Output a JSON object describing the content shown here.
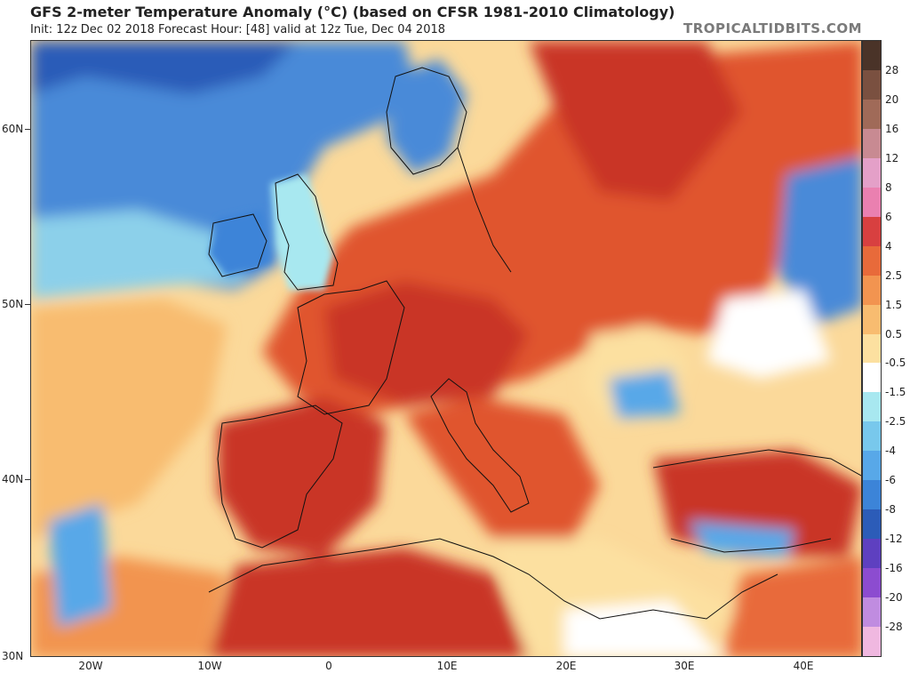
{
  "header": {
    "title": "GFS 2-meter Temperature Anomaly (°C) (based on CFSR 1981-2010 Climatology)",
    "subtitle": "Init: 12z Dec 02 2018   Forecast Hour: [48]   valid at 12z Tue, Dec 04 2018",
    "brand": "TROPICALTIDBITS.COM"
  },
  "axes": {
    "latitudes": [
      "60N",
      "50N",
      "40N",
      "30N"
    ],
    "longitudes": [
      "20W",
      "10W",
      "0",
      "10E",
      "20E",
      "30E",
      "40E"
    ]
  },
  "legend": {
    "labels": [
      "28",
      "20",
      "16",
      "12",
      "8",
      "6",
      "4",
      "2.5",
      "1.5",
      "0.5",
      "-0.5",
      "-1.5",
      "-2.5",
      "-4",
      "-6",
      "-8",
      "-12",
      "-16",
      "-20",
      "-28"
    ],
    "colors": [
      "#4a3328",
      "#7a5040",
      "#a06a58",
      "#c88a92",
      "#e4a0c8",
      "#ea80b0",
      "#d84040",
      "#e86a3a",
      "#f29450",
      "#f8bc70",
      "#fce0a0",
      "#ffffff",
      "#a8e8f0",
      "#78c8ec",
      "#58a8e8",
      "#3c84d8",
      "#2c5cb8",
      "#5e40c0",
      "#8c4cd0",
      "#c08ce0",
      "#f0b8e0"
    ]
  }
}
